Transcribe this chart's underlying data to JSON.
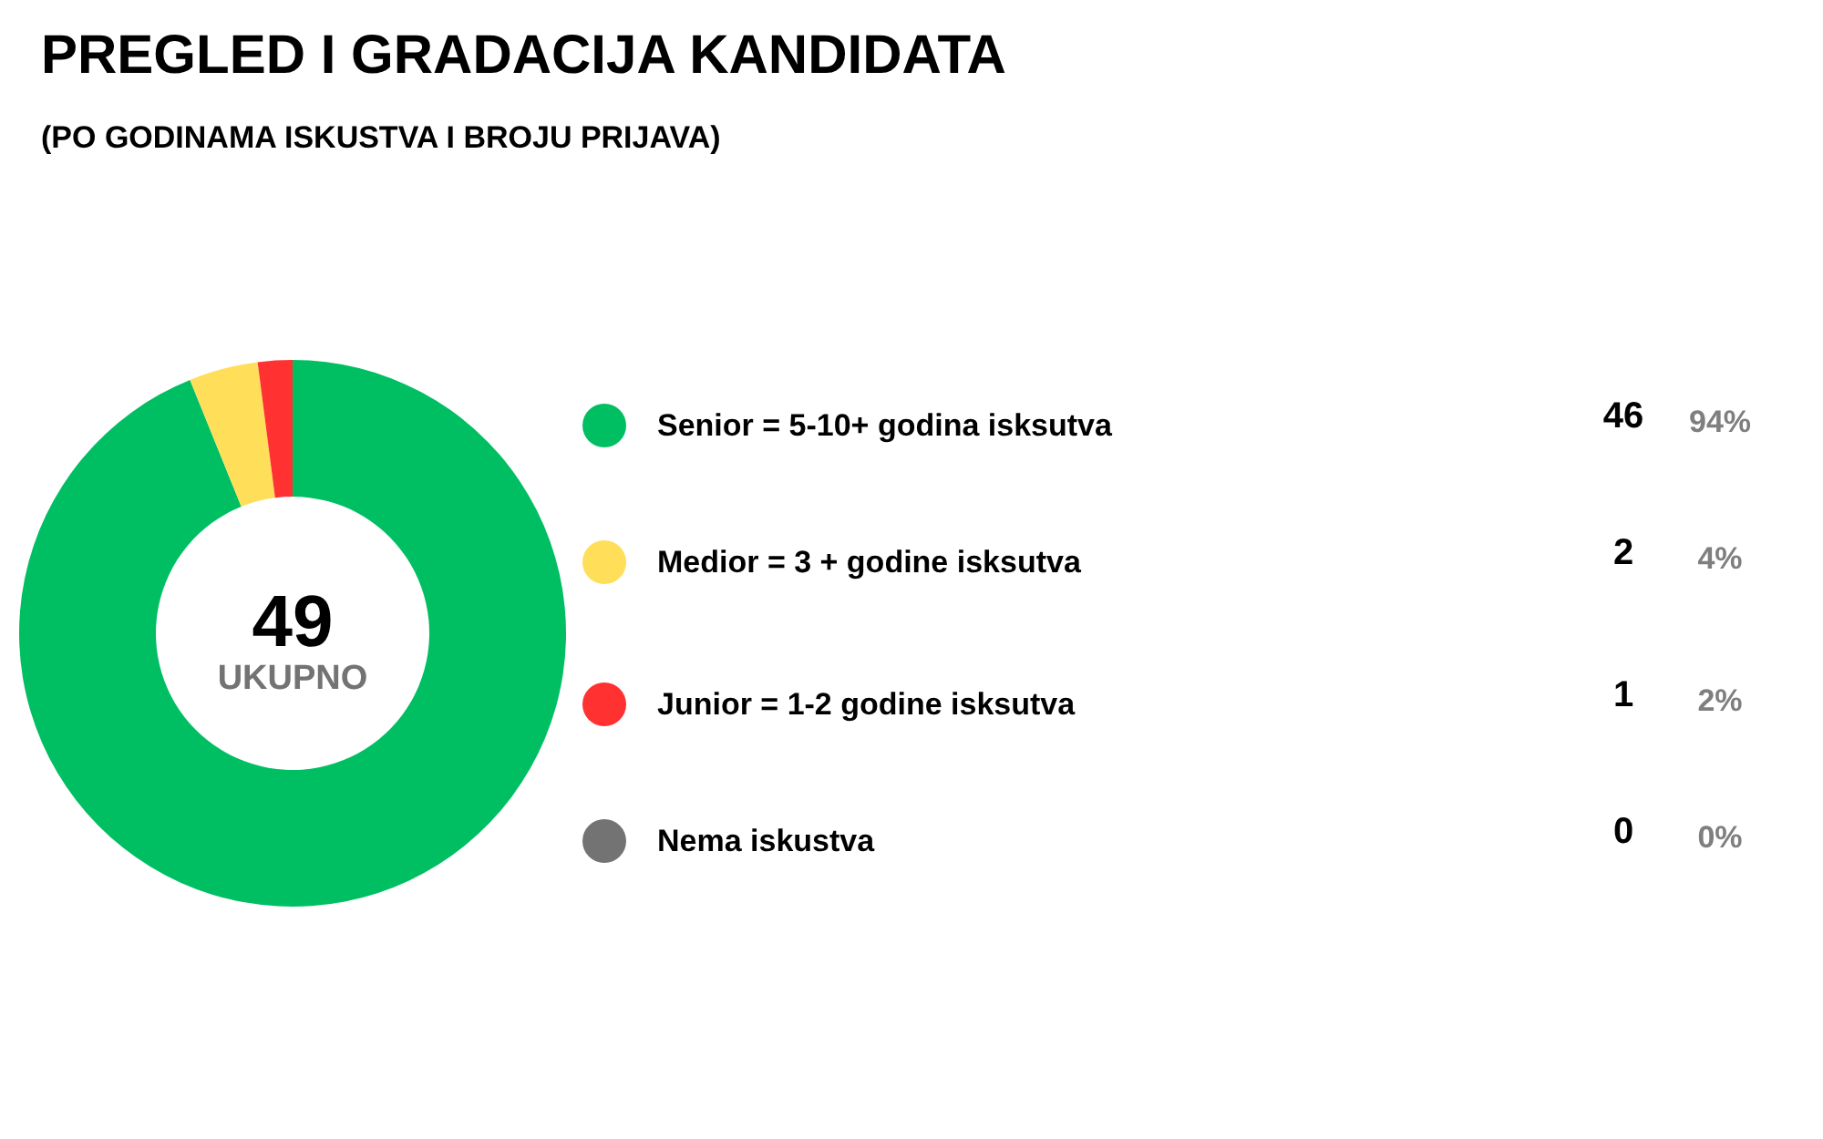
{
  "chart_data": {
    "type": "donut",
    "title": "PREGLED I GRADACIJA KANDIDATA",
    "subtitle": "(PO GODINAMA ISKUSTVA I BROJU PRIJAVA)",
    "categories": [
      "Senior = 5-10+ godina isksutva",
      "Medior = 3 + godine isksutva",
      "Junior = 1-2 godine isksutva",
      "Nema iskustva"
    ],
    "values": [
      46,
      2,
      1,
      0
    ],
    "colors": [
      "#00bf63",
      "#ffde59",
      "#ff3131",
      "#737373"
    ],
    "value_labels": [
      "46",
      "2",
      "1",
      "0"
    ],
    "legend": "right",
    "annotations": [
      "49",
      "UKUPNO",
      "94%",
      "4%",
      "2%",
      "0%"
    ]
  }
}
